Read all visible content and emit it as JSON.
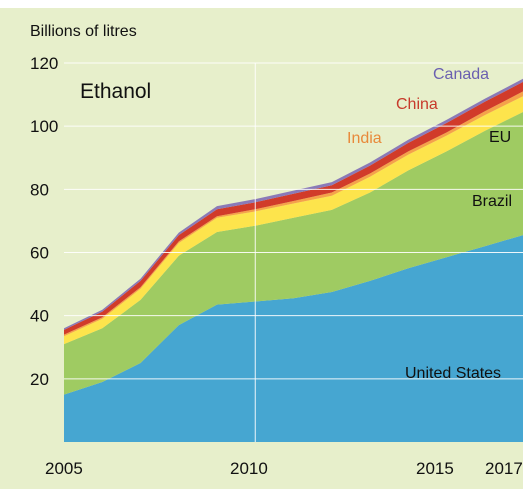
{
  "chart_data": {
    "type": "area",
    "stacked": true,
    "title": "Ethanol",
    "ylabel": "Billions of litres",
    "xlabel": "",
    "ylim": [
      0,
      120
    ],
    "xlim": [
      2005,
      2017
    ],
    "yticks": [
      20,
      40,
      60,
      80,
      100,
      120
    ],
    "xticks": [
      2005,
      2010,
      2015,
      2017
    ],
    "x": [
      2005,
      2006,
      2007,
      2008,
      2009,
      2010,
      2011,
      2012,
      2013,
      2014,
      2015,
      2016,
      2017
    ],
    "grid": true,
    "legend": "none",
    "background": "#e7efcb",
    "series": [
      {
        "name": "United States",
        "color": "#46a6d1",
        "label_color": "#111111",
        "values": [
          15,
          19,
          25,
          37,
          43.5,
          44.5,
          45.5,
          47.5,
          51,
          55,
          58.5,
          62,
          65.5
        ]
      },
      {
        "name": "Brazil",
        "color": "#9fcb62",
        "label_color": "#111111",
        "values": [
          16,
          17,
          20,
          22,
          23,
          24,
          25.5,
          26,
          28,
          31,
          33.5,
          36.5,
          39
        ]
      },
      {
        "name": "EU",
        "color": "#fde44c",
        "label_color": "#111111",
        "values": [
          2.5,
          3,
          3.5,
          4,
          4.5,
          4.5,
          4.5,
          4.5,
          5,
          5,
          5,
          5,
          5
        ]
      },
      {
        "name": "India",
        "color": "#f5a24a",
        "label_color": "#e8893a",
        "values": [
          0.5,
          0.5,
          0.5,
          0.5,
          0.5,
          0.7,
          0.8,
          1,
          1,
          1,
          1,
          1.2,
          1.5
        ]
      },
      {
        "name": "China",
        "color": "#d13b2a",
        "label_color": "#c73a2b",
        "values": [
          1.5,
          1.8,
          2,
          2,
          2.2,
          2.2,
          2.3,
          2.3,
          2.5,
          2.7,
          3,
          3,
          3
        ]
      },
      {
        "name": "Canada",
        "color": "#8a7ab8",
        "label_color": "#6a5fb0",
        "values": [
          0.5,
          0.6,
          0.7,
          0.8,
          1,
          1,
          1,
          1,
          1,
          1,
          1,
          1,
          1
        ]
      }
    ]
  }
}
